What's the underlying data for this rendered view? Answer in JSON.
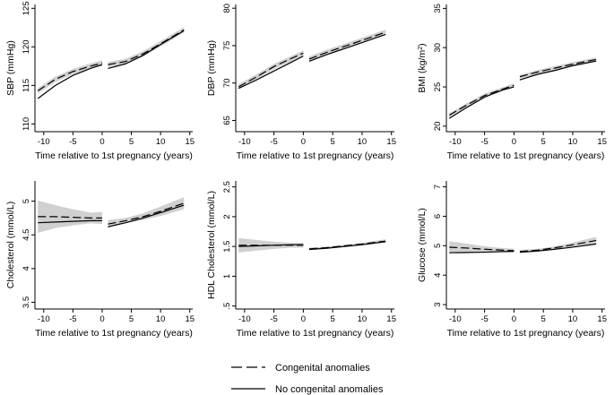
{
  "figure": {
    "legend": [
      {
        "label": "Congenital anomalies",
        "style": "dashed"
      },
      {
        "label": "No congenital anomalies",
        "style": "solid"
      }
    ]
  },
  "colors": {
    "band": "#d0d0d0",
    "line": "#000000",
    "axis": "#000000"
  },
  "chart_data": [
    {
      "type": "line",
      "id": "sbp",
      "ylabel": "SBP (mmHg)",
      "ylabel_sup": "",
      "ylabel_tail": "",
      "xlabel": "Time relative to 1st pregnancy (years)",
      "xlim": [
        -11.5,
        15.5
      ],
      "ylim": [
        109,
        125.5
      ],
      "xticks": [
        -10,
        -5,
        0,
        5,
        10,
        15
      ],
      "yticks": [
        110,
        115,
        120,
        125
      ],
      "ytick_labels": [
        "110",
        "115",
        "120",
        "125"
      ],
      "series": [
        {
          "name": "Congenital anomalies",
          "style": "dashed",
          "band_halfwidth": 0.35,
          "segments": [
            {
              "x": [
                -11,
                -8,
                -5,
                -2,
                0
              ],
              "y": [
                114.3,
                115.8,
                116.8,
                117.5,
                117.9
              ]
            },
            {
              "x": [
                1,
                4,
                7,
                10,
                14
              ],
              "y": [
                117.7,
                118.1,
                119.1,
                120.4,
                122.2
              ]
            }
          ]
        },
        {
          "name": "No congenital anomalies",
          "style": "solid",
          "band_halfwidth": 0,
          "segments": [
            {
              "x": [
                -11,
                -8,
                -5,
                -2,
                0
              ],
              "y": [
                113.3,
                115.0,
                116.3,
                117.2,
                117.7
              ]
            },
            {
              "x": [
                1,
                4,
                7,
                10,
                14
              ],
              "y": [
                117.2,
                117.8,
                118.9,
                120.3,
                122.1
              ]
            }
          ]
        }
      ]
    },
    {
      "type": "line",
      "id": "dbp",
      "ylabel": "DBP (mmHg)",
      "ylabel_sup": "",
      "ylabel_tail": "",
      "xlabel": "Time relative to 1st pregnancy (years)",
      "xlim": [
        -11.5,
        15.5
      ],
      "ylim": [
        63.5,
        80.5
      ],
      "xticks": [
        -10,
        -5,
        0,
        5,
        10,
        15
      ],
      "yticks": [
        65,
        70,
        75,
        80
      ],
      "ytick_labels": [
        "65",
        "70",
        "75",
        "80"
      ],
      "series": [
        {
          "name": "Congenital anomalies",
          "style": "dashed",
          "band_halfwidth": 0.35,
          "segments": [
            {
              "x": [
                -11,
                -8,
                -5,
                -2,
                0
              ],
              "y": [
                69.5,
                70.8,
                72.2,
                73.3,
                74.0
              ]
            },
            {
              "x": [
                1,
                4,
                7,
                10,
                14
              ],
              "y": [
                73.2,
                74.1,
                74.9,
                75.7,
                76.8
              ]
            }
          ]
        },
        {
          "name": "No congenital anomalies",
          "style": "solid",
          "band_halfwidth": 0,
          "segments": [
            {
              "x": [
                -11,
                -8,
                -5,
                -2,
                0
              ],
              "y": [
                69.3,
                70.4,
                71.6,
                72.8,
                73.6
              ]
            },
            {
              "x": [
                1,
                4,
                7,
                10,
                14
              ],
              "y": [
                72.9,
                73.8,
                74.6,
                75.4,
                76.5
              ]
            }
          ]
        }
      ]
    },
    {
      "type": "line",
      "id": "bmi",
      "ylabel": "BMI (kg/m",
      "ylabel_sup": "2",
      "ylabel_tail": ")",
      "xlabel": "Time relative to 1st pregnancy (years)",
      "xlim": [
        -11.5,
        15.5
      ],
      "ylim": [
        19.3,
        35.5
      ],
      "xticks": [
        -10,
        -5,
        0,
        5,
        10,
        15
      ],
      "yticks": [
        20,
        25,
        30,
        35
      ],
      "ytick_labels": [
        "20",
        "25",
        "30",
        "35"
      ],
      "series": [
        {
          "name": "Congenital anomalies",
          "style": "dashed",
          "band_halfwidth": 0.25,
          "segments": [
            {
              "x": [
                -11,
                -8,
                -5,
                -2,
                0
              ],
              "y": [
                21.4,
                22.7,
                23.9,
                24.7,
                25.2
              ]
            },
            {
              "x": [
                1,
                4,
                7,
                10,
                14
              ],
              "y": [
                26.3,
                26.9,
                27.4,
                27.9,
                28.5
              ]
            }
          ]
        },
        {
          "name": "No congenital anomalies",
          "style": "solid",
          "band_halfwidth": 0,
          "segments": [
            {
              "x": [
                -11,
                -8,
                -5,
                -2,
                0
              ],
              "y": [
                21.0,
                22.4,
                23.7,
                24.6,
                25.0
              ]
            },
            {
              "x": [
                1,
                4,
                7,
                10,
                14
              ],
              "y": [
                25.9,
                26.6,
                27.1,
                27.7,
                28.3
              ]
            }
          ]
        }
      ]
    },
    {
      "type": "line",
      "id": "chol",
      "ylabel": "Cholesterol (mmol/L)",
      "ylabel_sup": "",
      "ylabel_tail": "",
      "xlabel": "Time relative to 1st pregnancy (years)",
      "xlim": [
        -11.5,
        15.5
      ],
      "ylim": [
        3.4,
        5.3
      ],
      "xticks": [
        -10,
        -5,
        0,
        5,
        10,
        15
      ],
      "yticks": [
        3.5,
        4,
        4.5,
        5
      ],
      "ytick_labels": [
        "3.5",
        "4",
        "4.5",
        "5"
      ],
      "series": [
        {
          "name": "Congenital anomalies",
          "style": "dashed",
          "band_halfwidth": [
            0.24,
            0.17,
            0.12,
            0.08,
            0.09,
            0.06,
            0.04,
            0.05,
            0.07,
            0.09
          ],
          "segments": [
            {
              "x": [
                -11,
                -8,
                -5,
                -2,
                0
              ],
              "y": [
                4.77,
                4.77,
                4.76,
                4.75,
                4.75
              ]
            },
            {
              "x": [
                1,
                4,
                7,
                10,
                14
              ],
              "y": [
                4.66,
                4.71,
                4.77,
                4.85,
                4.97
              ]
            }
          ]
        },
        {
          "name": "No congenital anomalies",
          "style": "solid",
          "band_halfwidth": 0,
          "segments": [
            {
              "x": [
                -11,
                -8,
                -5,
                -2,
                0
              ],
              "y": [
                4.68,
                4.69,
                4.7,
                4.71,
                4.71
              ]
            },
            {
              "x": [
                1,
                4,
                7,
                10,
                14
              ],
              "y": [
                4.62,
                4.68,
                4.75,
                4.83,
                4.94
              ]
            }
          ]
        }
      ]
    },
    {
      "type": "line",
      "id": "hdl",
      "ylabel": "HDL Cholesterol (mmol/L)",
      "ylabel_sup": "",
      "ylabel_tail": "",
      "xlabel": "Time relative to 1st pregnancy (years)",
      "xlim": [
        -11.5,
        15.5
      ],
      "ylim": [
        0.45,
        2.6
      ],
      "xticks": [
        -10,
        -5,
        0,
        5,
        10,
        15
      ],
      "yticks": [
        0.5,
        1,
        1.5,
        2,
        2.5
      ],
      "ytick_labels": [
        ".5",
        "1",
        "1.5",
        "2",
        "2.5"
      ],
      "series": [
        {
          "name": "Congenital anomalies",
          "style": "dashed",
          "band_halfwidth": [
            0.12,
            0.09,
            0.06,
            0.04,
            0.04,
            0.02,
            0.02,
            0.02,
            0.02,
            0.03
          ],
          "segments": [
            {
              "x": [
                -11,
                -8,
                -5,
                -2,
                0
              ],
              "y": [
                1.52,
                1.52,
                1.52,
                1.52,
                1.52
              ]
            },
            {
              "x": [
                1,
                4,
                7,
                10,
                14
              ],
              "y": [
                1.46,
                1.48,
                1.51,
                1.54,
                1.59
              ]
            }
          ]
        },
        {
          "name": "No congenital anomalies",
          "style": "solid",
          "band_halfwidth": 0,
          "segments": [
            {
              "x": [
                -11,
                -8,
                -5,
                -2,
                0
              ],
              "y": [
                1.5,
                1.51,
                1.52,
                1.53,
                1.53
              ]
            },
            {
              "x": [
                1,
                4,
                7,
                10,
                14
              ],
              "y": [
                1.45,
                1.47,
                1.5,
                1.53,
                1.58
              ]
            }
          ]
        }
      ]
    },
    {
      "type": "line",
      "id": "glucose",
      "ylabel": "Glucose (mmol/L)",
      "ylabel_sup": "",
      "ylabel_tail": "",
      "xlabel": "Time relative to 1st pregnancy (years)",
      "xlim": [
        -11.5,
        15.5
      ],
      "ylim": [
        2.85,
        7.2
      ],
      "xticks": [
        -10,
        -5,
        0,
        5,
        10,
        15
      ],
      "yticks": [
        3,
        4,
        5,
        6,
        7
      ],
      "ytick_labels": [
        "3",
        "4",
        "5",
        "6",
        "7"
      ],
      "series": [
        {
          "name": "Congenital anomalies",
          "style": "dashed",
          "band_halfwidth": [
            0.2,
            0.15,
            0.1,
            0.07,
            0.07,
            0.06,
            0.04,
            0.05,
            0.08,
            0.12
          ],
          "segments": [
            {
              "x": [
                -11,
                -8,
                -5,
                -2,
                0
              ],
              "y": [
                4.95,
                4.92,
                4.88,
                4.85,
                4.83
              ]
            },
            {
              "x": [
                1,
                4,
                7,
                10,
                14
              ],
              "y": [
                4.8,
                4.85,
                4.93,
                5.03,
                5.18
              ]
            }
          ]
        },
        {
          "name": "No congenital anomalies",
          "style": "solid",
          "band_halfwidth": 0,
          "segments": [
            {
              "x": [
                -11,
                -8,
                -5,
                -2,
                0
              ],
              "y": [
                4.76,
                4.77,
                4.78,
                4.8,
                4.81
              ]
            },
            {
              "x": [
                1,
                4,
                7,
                10,
                14
              ],
              "y": [
                4.78,
                4.82,
                4.88,
                4.95,
                5.06
              ]
            }
          ]
        }
      ]
    }
  ]
}
